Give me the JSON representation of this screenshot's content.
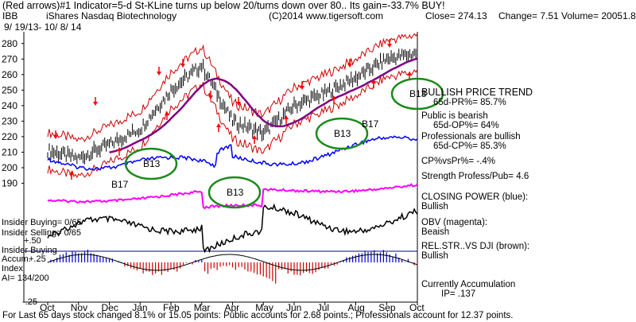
{
  "header": {
    "line1": "(Red arrows)#1 Indicator=5-d St-KLine turns up below 20/turns down over 80.. Its gain=-33.7% BUY!",
    "ticker": "IBB",
    "name": "iShares Nasdaq Biotechnology",
    "copyright": "(C)2014 www.tigersoft.com",
    "close": "Close= 274.13",
    "change": "Change= 7.51",
    "volume": "Volume= 20051.8",
    "range": "9/ 19/13- 10/ 8/ 14"
  },
  "side_notes": {
    "bullish_trend": "BULLISH PRICE TREND",
    "pr": "65d-PR%= 85.7%",
    "public": "Public is bearish",
    "op": "65d-OP%= 64%",
    "pros": "Professionals are bullish",
    "cp": "65d-CP%= 85.3%",
    "cpvspr": "CP%vsPr%= -.4%",
    "strength": "Strength Profess/Pub= 4.6",
    "closing_power": "CLOSING POWER (blue):",
    "closing_power_state": "Bullish",
    "obv": "OBV (magenta):",
    "obv_state": "Beaish",
    "relstr": "REL.STR..VS DJI (brown):",
    "relstr_state": "Bullish",
    "accum": "Currently Accumulation",
    "ip": "IP= .137"
  },
  "insider": {
    "buying": "Insider Buying= 0/65",
    "selling": "Insider Selling= 0/65",
    "label": "Insider Buying",
    "accum_index": "Accum.",
    "index": "Index",
    "ai": "AI= 134/200",
    "v50": "+.50",
    "v25": "+.25",
    "vneg25": "-.25"
  },
  "footer": "For Last 65 days stock changed  8.1% or  15.05 points:  Public accounts for  2.68 points.;  Professionals account for  12.37 points.",
  "signals": [
    {
      "label": "B13"
    },
    {
      "label": "B13"
    },
    {
      "label": "B13"
    },
    {
      "label": "B17"
    },
    {
      "label": "B13"
    },
    {
      "label": "B17"
    }
  ],
  "colors": {
    "price": "#000000",
    "bands": "#cc0000",
    "ma": "#800080",
    "closing_power": "#0000ff",
    "obv": "#ff00ff",
    "relstr": "#000000",
    "accum_pos": "#0000cc",
    "accum_neg": "#cc0000",
    "circles": "#1a8a1a",
    "arrows": "#ff0000"
  },
  "chart_data": {
    "type": "line",
    "title": "iShares Nasdaq Biotechnology",
    "categories": [
      "Oct",
      "Nov",
      "Dec",
      "Jan",
      "Feb",
      "Mar",
      "Apr",
      "May",
      "Jun",
      "Jul",
      "Aug",
      "Sep",
      "Oct"
    ],
    "y_ticks": [
      190,
      200,
      210,
      220,
      230,
      240,
      250,
      260,
      270,
      280
    ],
    "ylim": [
      180,
      285
    ],
    "series": [
      {
        "name": "IBB",
        "values": [
          211,
          206,
          215,
          225,
          250,
          266,
          230,
          222,
          240,
          248,
          258,
          270,
          274
        ]
      }
    ],
    "indicators": [
      {
        "name": "CLOSING POWER (blue)",
        "state": "Bullish"
      },
      {
        "name": "OBV (magenta)",
        "state": "Beaish"
      },
      {
        "name": "REL.STR..VS DJI (brown)",
        "state": "Bullish"
      }
    ]
  }
}
